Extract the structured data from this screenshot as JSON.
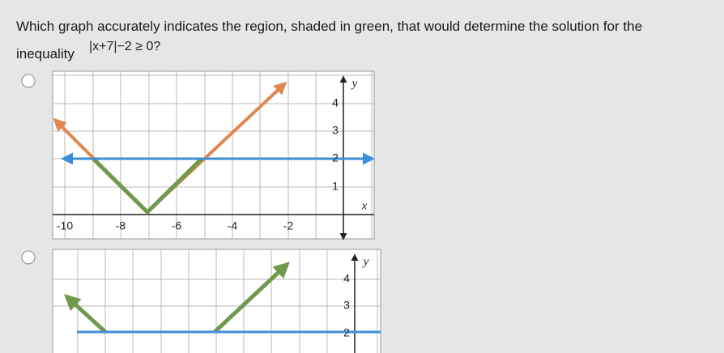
{
  "question": {
    "lines": [
      "Which graph accurately indicates the region, shaded in green, that would determine the solution for the",
      "inequality"
    ],
    "inequality": "|x+7|−2 ≥ 0?"
  },
  "options": [
    {
      "y_label": "y",
      "x_label": "x",
      "y_ticks": [
        "4",
        "3",
        "2",
        "1"
      ],
      "x_ticks": [
        "-10",
        "-8",
        "-6",
        "-4",
        "-2"
      ]
    },
    {
      "y_label": "y",
      "y_ticks": [
        "4",
        "3",
        "2"
      ]
    }
  ]
}
